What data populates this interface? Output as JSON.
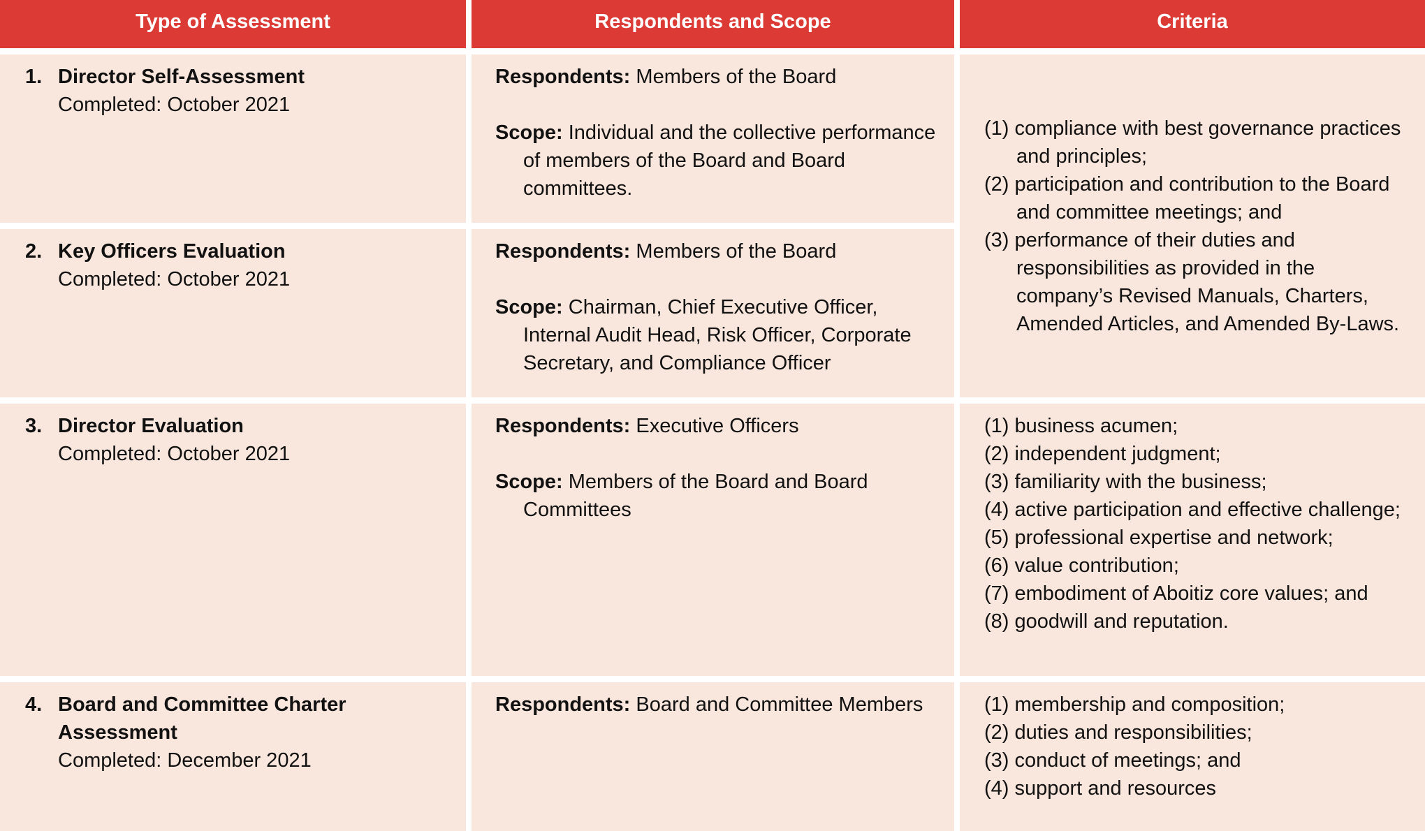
{
  "table": {
    "headers": [
      "Type of Assessment",
      "Respondents and Scope",
      "Criteria"
    ],
    "rows": [
      {
        "number": "1.",
        "type": "Director Self-Assessment",
        "completed": "Completed: October 2021",
        "respondents_label": "Respondents:",
        "respondents": "Members of the Board",
        "scope_label": "Scope:",
        "scope": "Individual and the collective performance of members of the Board and Board committees."
      },
      {
        "number": "2.",
        "type": "Key Officers Evaluation",
        "completed": "Completed: October 2021",
        "respondents_label": "Respondents:",
        "respondents": "Members of the Board",
        "scope_label": "Scope:",
        "scope": "Chairman, Chief Executive Officer, Internal Audit Head, Risk Officer, Corporate Secretary, and Compliance Officer"
      },
      {
        "number": "3.",
        "type": "Director Evaluation",
        "completed": "Completed: October 2021",
        "respondents_label": "Respondents:",
        "respondents": "Executive Officers",
        "scope_label": "Scope:",
        "scope": "Members of the Board and Board Committees"
      },
      {
        "number": "4.",
        "type": "Board and Committee Charter Assessment",
        "completed": "Completed: December 2021",
        "respondents_label": "Respondents:",
        "respondents": "Board and Committee Members"
      }
    ],
    "criteria": [
      [
        "(1) compliance with best governance practices and principles;",
        "(2) participation and contribution to the Board and committee meetings; and",
        "(3) performance of their duties and responsibilities as provided in the company’s Revised Manuals, Charters, Amended Articles, and Amended By-Laws."
      ],
      [
        "(1) business acumen;",
        "(2) independent judgment;",
        "(3) familiarity with the business;",
        "(4) active participation and effective challenge;",
        "(5) professional expertise and network;",
        "(6) value contribution;",
        "(7) embodiment of Aboitiz core values; and",
        "(8) goodwill and reputation."
      ],
      [
        "(1) membership and composition;",
        "(2) duties and responsibilities;",
        "(3) conduct of meetings; and",
        "(4) support and resources"
      ]
    ]
  }
}
